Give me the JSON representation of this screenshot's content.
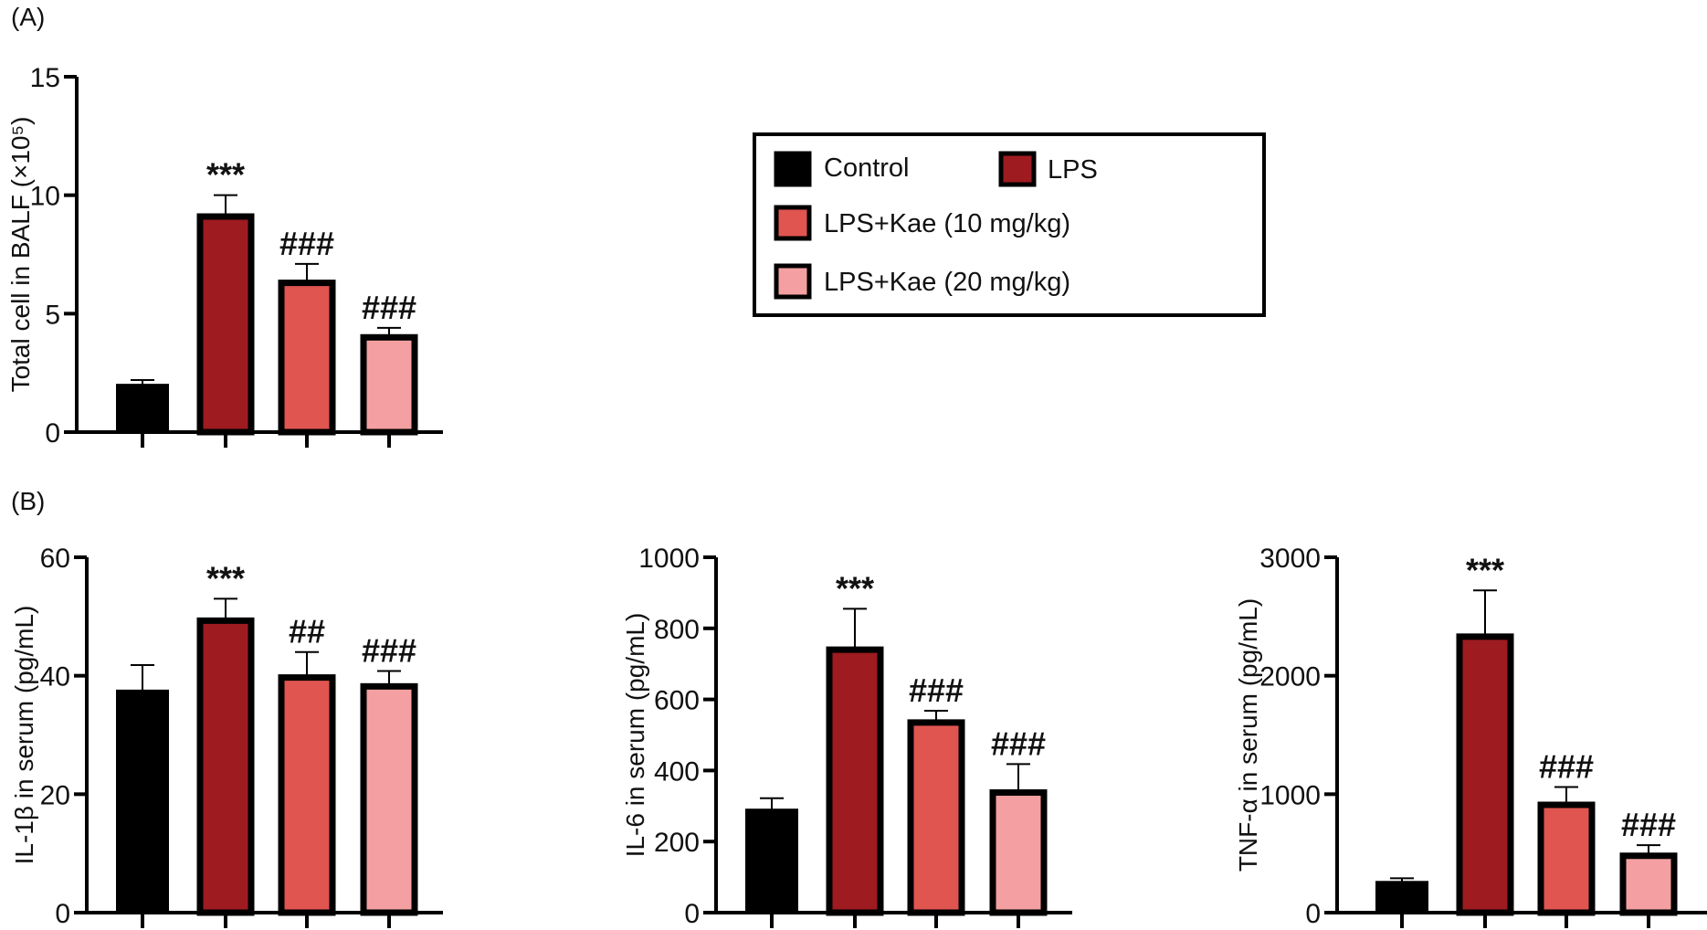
{
  "panel_labels": [
    "(A)",
    "(B)"
  ],
  "legend": {
    "entries": [
      {
        "label": "Control",
        "color": "#000000"
      },
      {
        "label": "LPS",
        "color": "#9e1b20"
      },
      {
        "label": "LPS+Kae (10 mg/kg)",
        "color": "#e05550"
      },
      {
        "label": "LPS+Kae (20 mg/kg)",
        "color": "#f4a0a2"
      }
    ]
  },
  "chart_data": [
    {
      "type": "bar",
      "panel": "A",
      "title": "",
      "ylabel": "Total cell in BALF (×10⁵)",
      "categories": [
        "Control",
        "LPS",
        "LPS+Kae (10 mg/kg)",
        "LPS+Kae (20 mg/kg)"
      ],
      "values": [
        2.0,
        9.1,
        6.3,
        4.0
      ],
      "error_upper": [
        2.2,
        10.0,
        7.1,
        4.4
      ],
      "annotations": [
        "",
        "***",
        "###",
        "###"
      ],
      "ylim": [
        0,
        15
      ],
      "yticks": [
        "0",
        "5",
        "10",
        "15"
      ],
      "ytick_values": [
        0,
        5,
        10,
        15
      ]
    },
    {
      "type": "bar",
      "panel": "B",
      "ylabel": "IL-1β in serum (pg/mL)",
      "categories": [
        "Control",
        "LPS",
        "LPS+Kae (10 mg/kg)",
        "LPS+Kae (20 mg/kg)"
      ],
      "values": [
        37.5,
        49.3,
        39.7,
        38.2
      ],
      "error_upper": [
        41.8,
        53.0,
        44.0,
        40.8
      ],
      "annotations": [
        "",
        "***",
        "##",
        "###"
      ],
      "ylim": [
        0,
        60
      ],
      "yticks": [
        "0",
        "20",
        "40",
        "60"
      ],
      "ytick_values": [
        0,
        20,
        40,
        60
      ]
    },
    {
      "type": "bar",
      "panel": "B",
      "ylabel": "IL-6 in serum (pg/mL)",
      "categories": [
        "Control",
        "LPS",
        "LPS+Kae (10 mg/kg)",
        "LPS+Kae (20 mg/kg)"
      ],
      "values": [
        290,
        740,
        535,
        338
      ],
      "error_upper": [
        322,
        855,
        568,
        418
      ],
      "annotations": [
        "",
        "***",
        "###",
        "###"
      ],
      "ylim": [
        0,
        1000
      ],
      "yticks": [
        "0",
        "200",
        "400",
        "600",
        "800",
        "1000"
      ],
      "ytick_values": [
        0,
        200,
        400,
        600,
        800,
        1000
      ]
    },
    {
      "type": "bar",
      "panel": "B",
      "ylabel": "TNF-α in serum (pg/mL)",
      "categories": [
        "Control",
        "LPS",
        "LPS+Kae (10 mg/kg)",
        "LPS+Kae (20 mg/kg)"
      ],
      "values": [
        260,
        2330,
        910,
        480
      ],
      "error_upper": [
        290,
        2720,
        1060,
        570
      ],
      "annotations": [
        "",
        "***",
        "###",
        "###"
      ],
      "ylim": [
        0,
        3000
      ],
      "yticks": [
        "0",
        "1000",
        "2000",
        "3000"
      ],
      "ytick_values": [
        0,
        1000,
        2000,
        3000
      ]
    }
  ]
}
